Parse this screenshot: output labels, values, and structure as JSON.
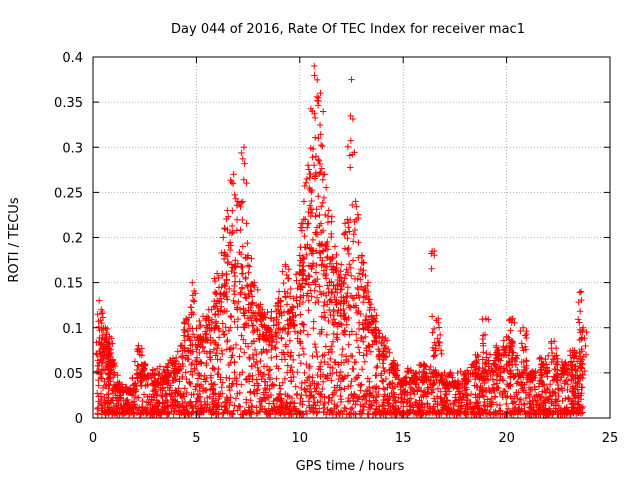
{
  "chart_data": {
    "type": "scatter",
    "title": "Day 044 of 2016, Rate Of TEC Index for receiver mac1",
    "xlabel": "GPS time / hours",
    "ylabel": "ROTI / TECUs",
    "xlim": [
      0,
      25
    ],
    "ylim": [
      0,
      0.4
    ],
    "x_ticks": [
      0,
      5,
      10,
      15,
      20,
      25
    ],
    "x_tick_labels": [
      "0",
      "5",
      "10",
      "15",
      "20",
      "25"
    ],
    "y_ticks": [
      0,
      0.05,
      0.1,
      0.15,
      0.2,
      0.25,
      0.3,
      0.35,
      0.4
    ],
    "y_tick_labels": [
      "0",
      "0.05",
      "0.1",
      "0.15",
      "0.2",
      "0.25",
      "0.3",
      "0.35",
      "0.4"
    ],
    "grid": true,
    "marker": "+",
    "marker_color": "#ff0000",
    "series": [
      {
        "name": "ROTI",
        "points": [
          [
            0.3,
            0.13
          ],
          [
            0.4,
            0.12
          ],
          [
            0.6,
            0.1
          ],
          [
            0.8,
            0.09
          ],
          [
            0.9,
            0.06
          ],
          [
            1.2,
            0.02
          ],
          [
            1.8,
            0.03
          ],
          [
            2.2,
            0.08
          ],
          [
            2.5,
            0.06
          ],
          [
            3.0,
            0.04
          ],
          [
            3.5,
            0.05
          ],
          [
            4.0,
            0.06
          ],
          [
            4.5,
            0.11
          ],
          [
            4.8,
            0.15
          ],
          [
            5.2,
            0.09
          ],
          [
            5.6,
            0.12
          ],
          [
            6.0,
            0.16
          ],
          [
            6.3,
            0.2
          ],
          [
            6.5,
            0.23
          ],
          [
            6.8,
            0.27
          ],
          [
            7.0,
            0.24
          ],
          [
            7.3,
            0.3
          ],
          [
            7.5,
            0.18
          ],
          [
            7.8,
            0.15
          ],
          [
            8.2,
            0.12
          ],
          [
            8.5,
            0.1
          ],
          [
            9.0,
            0.14
          ],
          [
            9.3,
            0.17
          ],
          [
            9.6,
            0.12
          ],
          [
            10.0,
            0.18
          ],
          [
            10.2,
            0.24
          ],
          [
            10.4,
            0.28
          ],
          [
            10.6,
            0.34
          ],
          [
            10.7,
            0.39
          ],
          [
            10.9,
            0.31
          ],
          [
            11.0,
            0.36
          ],
          [
            11.2,
            0.27
          ],
          [
            11.4,
            0.23
          ],
          [
            11.7,
            0.19
          ],
          [
            12.0,
            0.17
          ],
          [
            12.3,
            0.22
          ],
          [
            12.5,
            0.375
          ],
          [
            12.7,
            0.24
          ],
          [
            13.0,
            0.18
          ],
          [
            13.3,
            0.15
          ],
          [
            13.6,
            0.12
          ],
          [
            14.0,
            0.09
          ],
          [
            14.5,
            0.06
          ],
          [
            15.0,
            0.04
          ],
          [
            15.5,
            0.05
          ],
          [
            16.0,
            0.06
          ],
          [
            16.5,
            0.185
          ],
          [
            16.7,
            0.11
          ],
          [
            17.0,
            0.05
          ],
          [
            17.5,
            0.04
          ],
          [
            18.0,
            0.05
          ],
          [
            18.5,
            0.07
          ],
          [
            19.0,
            0.11
          ],
          [
            19.5,
            0.08
          ],
          [
            20.0,
            0.09
          ],
          [
            20.3,
            0.11
          ],
          [
            20.8,
            0.1
          ],
          [
            21.2,
            0.05
          ],
          [
            21.8,
            0.06
          ],
          [
            22.3,
            0.085
          ],
          [
            22.8,
            0.06
          ],
          [
            23.2,
            0.075
          ],
          [
            23.6,
            0.14
          ],
          [
            23.7,
            0.1
          ]
        ]
      }
    ],
    "envelope": [
      [
        0.2,
        0.05
      ],
      [
        0.5,
        0.09
      ],
      [
        0.9,
        0.06
      ],
      [
        1.5,
        0.025
      ],
      [
        2.0,
        0.04
      ],
      [
        2.5,
        0.05
      ],
      [
        3.0,
        0.045
      ],
      [
        3.5,
        0.05
      ],
      [
        4.0,
        0.06
      ],
      [
        4.5,
        0.08
      ],
      [
        5.0,
        0.09
      ],
      [
        5.5,
        0.1
      ],
      [
        6.0,
        0.12
      ],
      [
        6.5,
        0.14
      ],
      [
        7.0,
        0.15
      ],
      [
        7.5,
        0.13
      ],
      [
        8.0,
        0.11
      ],
      [
        8.5,
        0.1
      ],
      [
        9.0,
        0.11
      ],
      [
        9.5,
        0.12
      ],
      [
        10.0,
        0.15
      ],
      [
        10.5,
        0.18
      ],
      [
        11.0,
        0.18
      ],
      [
        11.5,
        0.15
      ],
      [
        12.0,
        0.14
      ],
      [
        12.5,
        0.15
      ],
      [
        13.0,
        0.13
      ],
      [
        13.5,
        0.11
      ],
      [
        14.0,
        0.08
      ],
      [
        14.5,
        0.06
      ],
      [
        15.0,
        0.045
      ],
      [
        16.0,
        0.05
      ],
      [
        17.0,
        0.04
      ],
      [
        18.0,
        0.045
      ],
      [
        19.0,
        0.06
      ],
      [
        20.0,
        0.065
      ],
      [
        21.0,
        0.05
      ],
      [
        22.0,
        0.06
      ],
      [
        22.5,
        0.05
      ],
      [
        23.0,
        0.06
      ],
      [
        23.7,
        0.05
      ]
    ]
  }
}
